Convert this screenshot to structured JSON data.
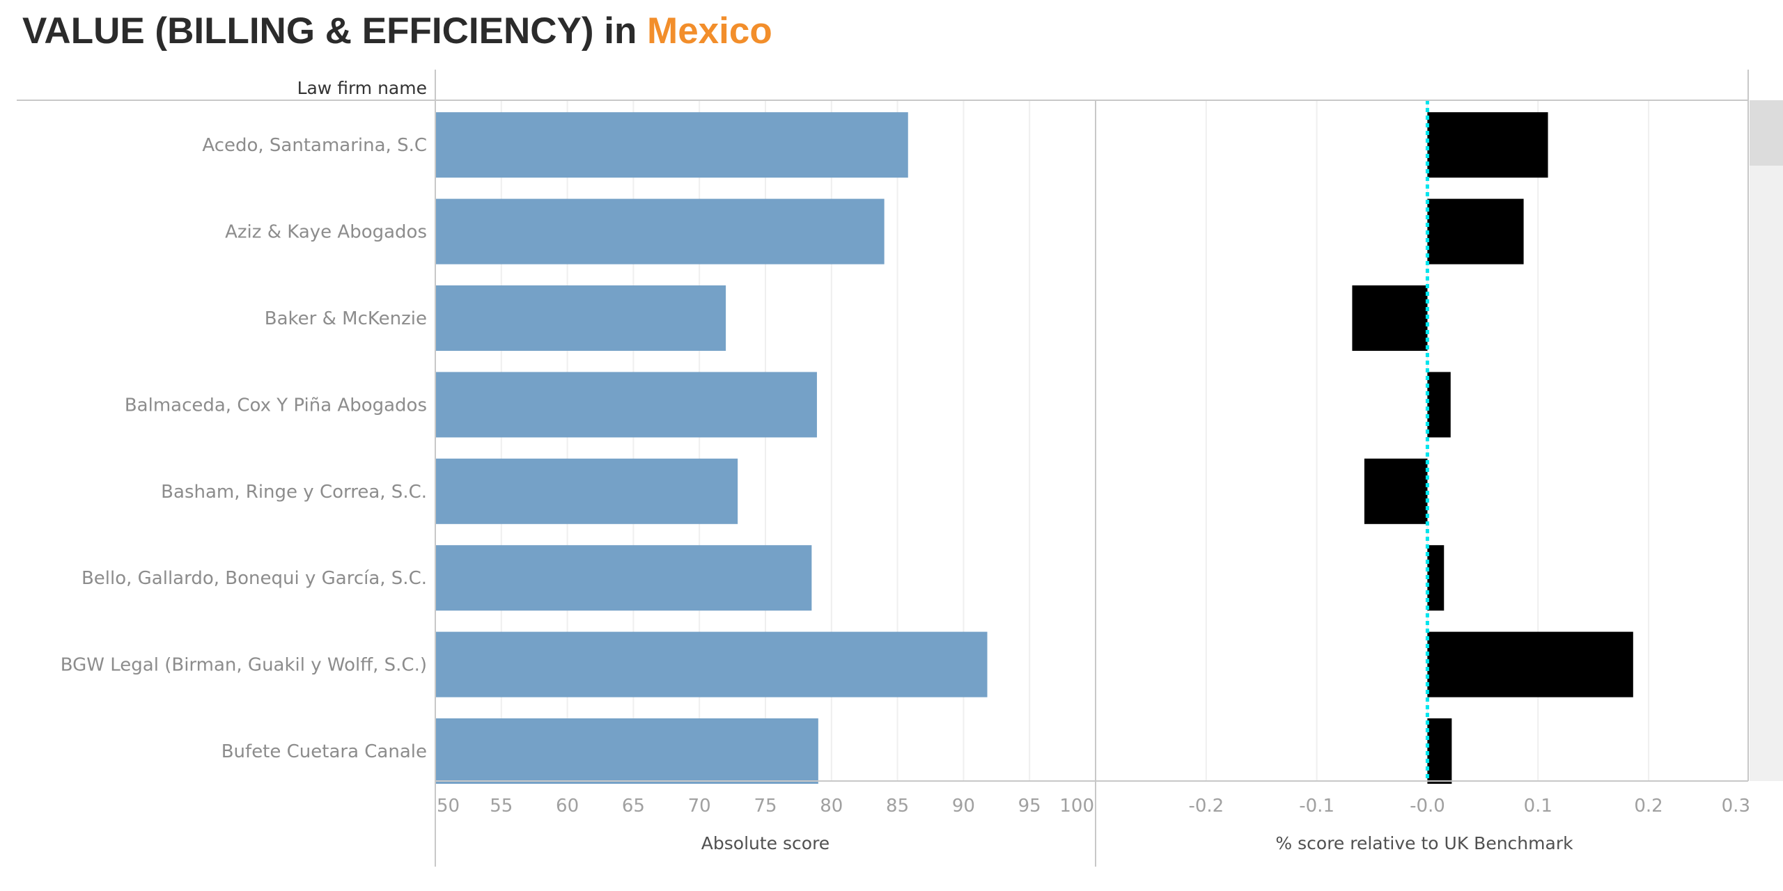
{
  "title": {
    "prefix": "VALUE (BILLING & EFFICIENCY) in ",
    "highlight": "Mexico"
  },
  "colors": {
    "absolute_bar": "#75a1c7",
    "relative_bar": "#000000",
    "benchmark_line": "#00e5ee",
    "highlight": "#f28e2b"
  },
  "chart_data": {
    "type": "bar",
    "orientation": "horizontal",
    "row_header": "Law firm name",
    "categories": [
      "Acedo, Santamarina, S.C",
      "Aziz & Kaye Abogados",
      "Baker & McKenzie",
      "Balmaceda, Cox Y Piña Abogados",
      "Basham, Ringe y Correa, S.C.",
      "Bello, Gallardo, Bonequi y García, S.C.",
      "BGW Legal (Birman, Guakil y Wolff, S.C.)",
      "Bufete Cuetara Canale"
    ],
    "panels": [
      {
        "name": "absolute",
        "xlabel": "Absolute score",
        "xlim": [
          50,
          100
        ],
        "ticks": [
          50,
          55,
          60,
          65,
          70,
          75,
          80,
          85,
          90,
          95,
          100
        ],
        "tick_labels": [
          "50",
          "55",
          "60",
          "65",
          "70",
          "75",
          "80",
          "85",
          "90",
          "95",
          "100"
        ],
        "values": [
          85.8,
          84.0,
          72.0,
          78.9,
          72.9,
          78.5,
          91.8,
          79.0
        ],
        "grid": true
      },
      {
        "name": "relative",
        "xlabel": "% score relative to UK Benchmark",
        "xlim": [
          -0.3,
          0.29
        ],
        "ticks": [
          -0.2,
          -0.1,
          0.0,
          0.1,
          0.2,
          0.3
        ],
        "tick_labels": [
          "-0.2",
          "-0.1",
          "-0.0",
          "0.1",
          "0.2",
          "0.3"
        ],
        "values": [
          0.109,
          0.087,
          -0.068,
          0.021,
          -0.057,
          0.015,
          0.186,
          0.022
        ],
        "reference_line": 0.0,
        "grid": true
      }
    ]
  }
}
